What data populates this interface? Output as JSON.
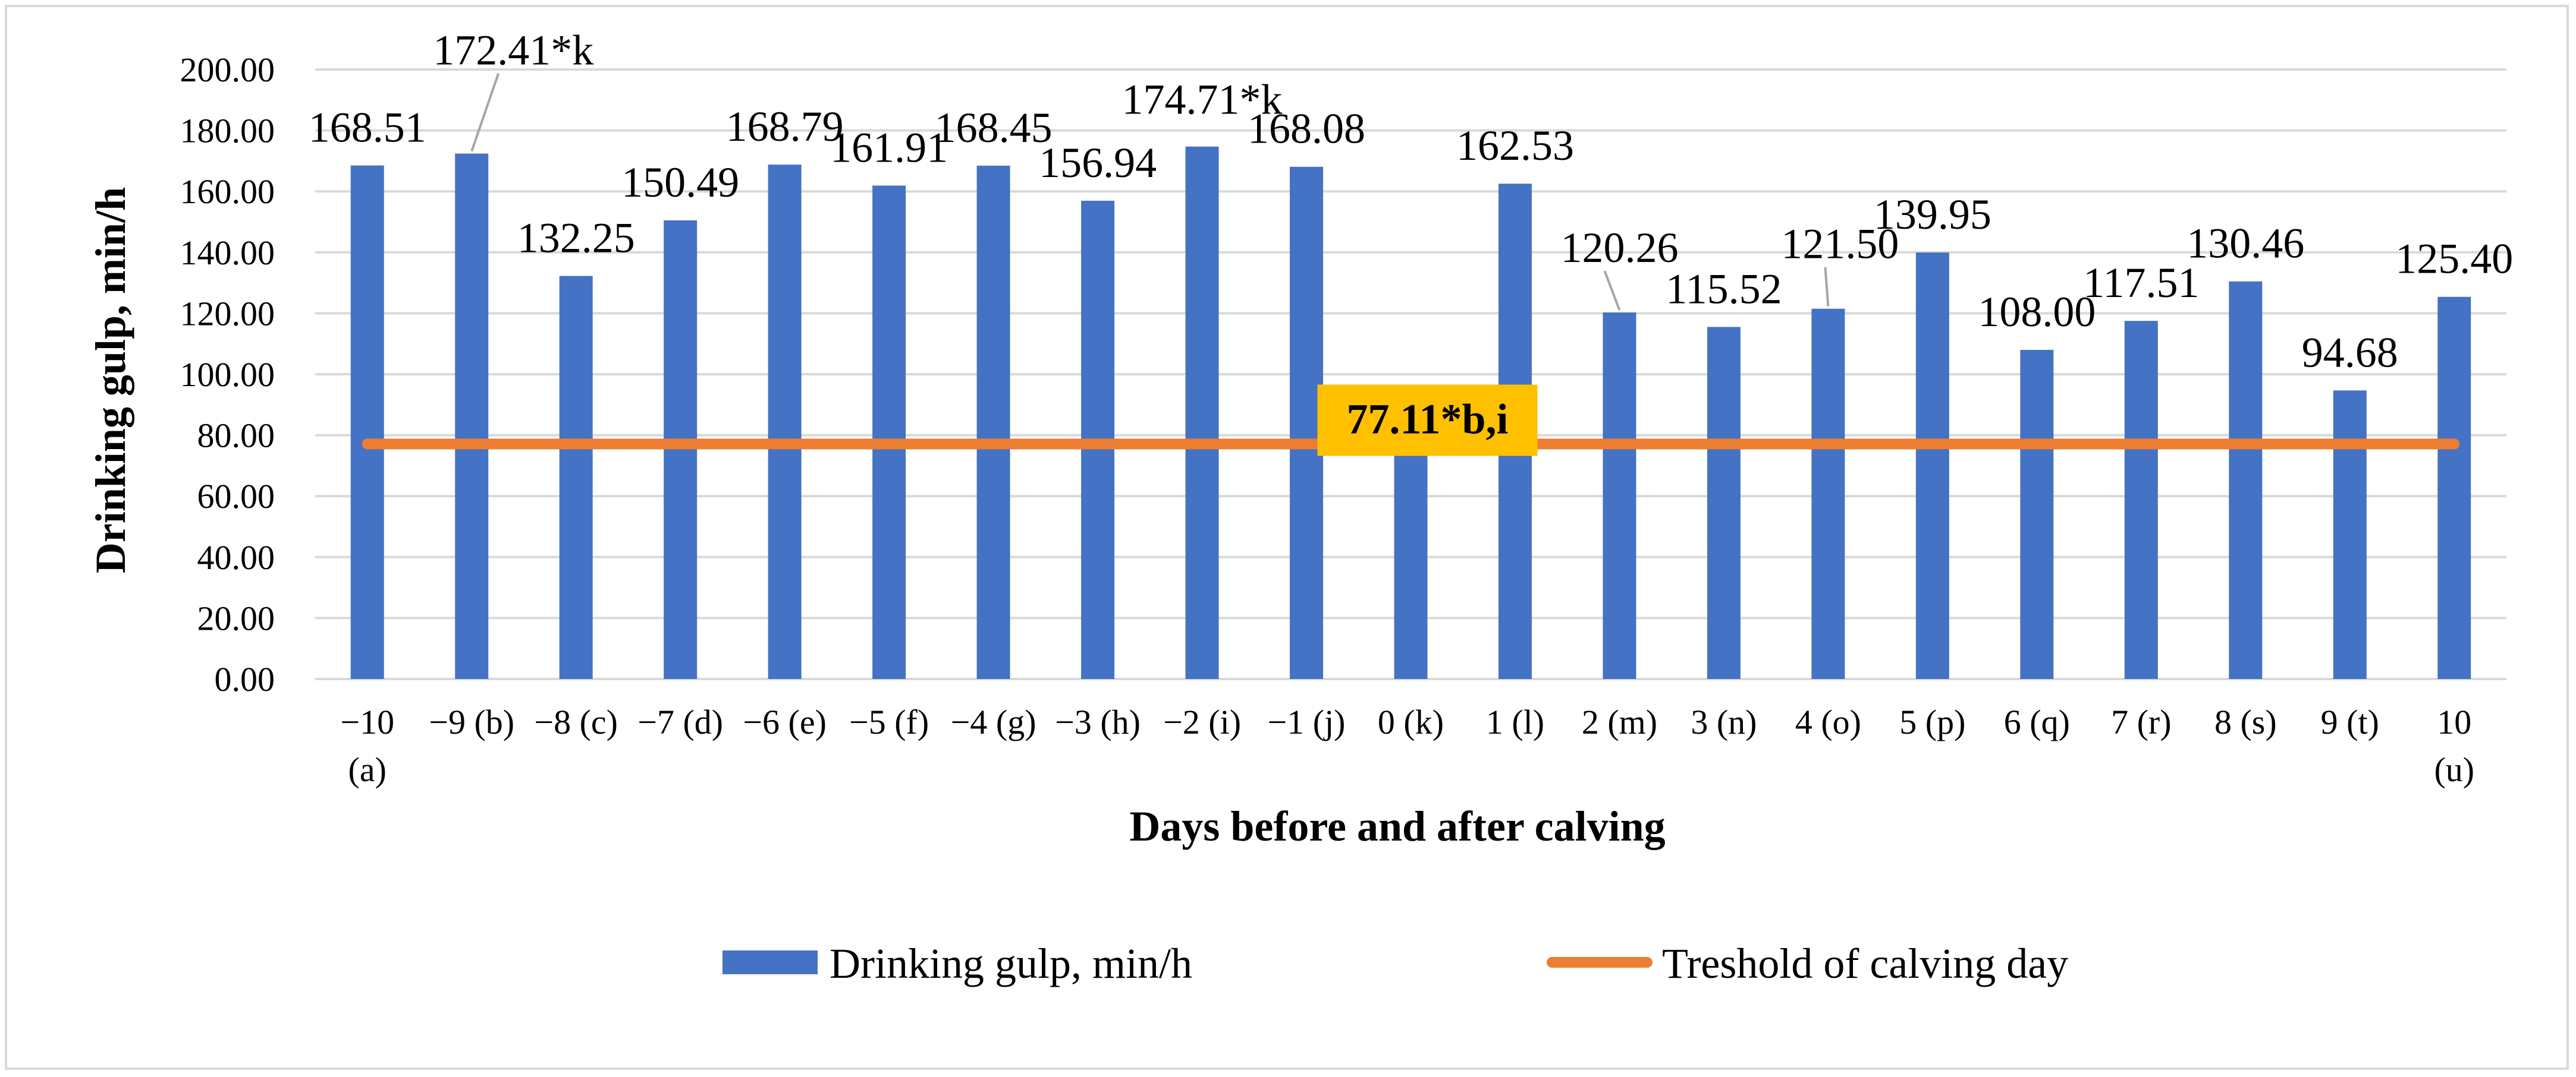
{
  "chart_data": {
    "type": "bar",
    "categories": [
      [
        "−10",
        "(a)"
      ],
      [
        "−9 (b)"
      ],
      [
        "−8 (c)"
      ],
      [
        "−7 (d)"
      ],
      [
        "−6 (e)"
      ],
      [
        "−5 (f)"
      ],
      [
        "−4 (g)"
      ],
      [
        "−3 (h)"
      ],
      [
        "−2 (i)"
      ],
      [
        "−1 (j)"
      ],
      [
        "0 (k)"
      ],
      [
        "1 (l)"
      ],
      [
        "2 (m)"
      ],
      [
        "3 (n)"
      ],
      [
        "4 (o)"
      ],
      [
        "5 (p)"
      ],
      [
        "6 (q)"
      ],
      [
        "7 (r)"
      ],
      [
        "8 (s)"
      ],
      [
        "9 (t)"
      ],
      [
        "10",
        "(u)"
      ]
    ],
    "series": [
      {
        "name": "Drinking gulp, min/h",
        "type": "bar",
        "color": "#4472C4",
        "values": [
          168.51,
          172.41,
          132.25,
          150.49,
          168.79,
          161.91,
          168.45,
          156.94,
          174.71,
          168.08,
          77.11,
          162.53,
          120.26,
          115.52,
          121.5,
          139.95,
          108.0,
          117.51,
          130.46,
          94.68,
          125.4
        ],
        "labels": [
          "168.51",
          "172.41*k",
          "132.25",
          "150.49",
          "168.79",
          "161.91",
          "168.45",
          "156.94",
          "174.71*k",
          "168.08",
          "77.11*b,i",
          "162.53",
          "120.26",
          "115.52",
          "121.50",
          "139.95",
          "108.00",
          "117.51",
          "130.46",
          "94.68",
          "125.40"
        ]
      },
      {
        "name": "Treshold of calving day",
        "type": "line",
        "color": "#ED7D31",
        "value": 77.11
      }
    ],
    "callout_color": "#FFC000",
    "xlabel": "Days before and after calving",
    "ylabel": "Drinking gulp, min/h",
    "ylim": [
      0,
      200
    ],
    "yticks": [
      "0.00",
      "20.00",
      "40.00",
      "60.00",
      "80.00",
      "100.00",
      "120.00",
      "140.00",
      "160.00",
      "180.00",
      "200.00"
    ],
    "grid": true,
    "legend_position": "bottom"
  }
}
